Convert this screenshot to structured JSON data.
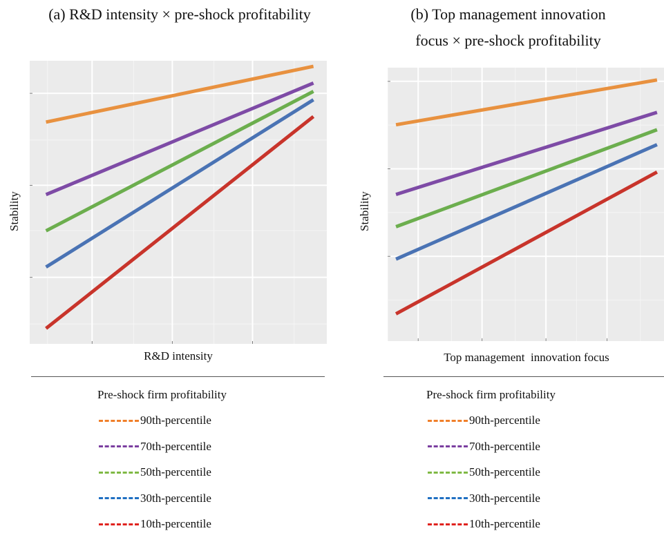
{
  "chart_data": [
    {
      "type": "line",
      "title": "(a) R&D intensity × pre-shock profitability",
      "xlabel": "R&D intensity",
      "ylabel": "Stability",
      "xlim": [
        0,
        1
      ],
      "ylim": [
        0,
        1
      ],
      "grid": true,
      "legend_title": "Pre-shock firm profitability",
      "legend_position": "bottom",
      "series": [
        {
          "name": "90th-percentile",
          "color": "#E8913F",
          "x": [
            0,
            1
          ],
          "y": [
            0.78,
            0.98
          ]
        },
        {
          "name": "70th-percentile",
          "color": "#7E4BA6",
          "x": [
            0,
            1
          ],
          "y": [
            0.52,
            0.92
          ]
        },
        {
          "name": "50th-percentile",
          "color": "#6CAE4E",
          "x": [
            0,
            1
          ],
          "y": [
            0.39,
            0.89
          ]
        },
        {
          "name": "30th-percentile",
          "color": "#4A73B4",
          "x": [
            0,
            1
          ],
          "y": [
            0.26,
            0.86
          ]
        },
        {
          "name": "10th-percentile",
          "color": "#C8342B",
          "x": [
            0,
            1
          ],
          "y": [
            0.04,
            0.8
          ]
        }
      ]
    },
    {
      "type": "line",
      "title_line1": "(b) Top management innovation",
      "title_line2": "focus × pre-shock profitability",
      "xlabel": "Top management  innovation focus",
      "ylabel": "Stability",
      "xlim": [
        0,
        1
      ],
      "ylim": [
        0,
        1
      ],
      "grid": true,
      "legend_title": "Pre-shock firm profitability",
      "legend_position": "bottom",
      "series": [
        {
          "name": "90th-percentile",
          "color": "#E8913F",
          "x": [
            0,
            1
          ],
          "y": [
            0.82,
            1.0
          ]
        },
        {
          "name": "70th-percentile",
          "color": "#7E4BA6",
          "x": [
            0,
            1
          ],
          "y": [
            0.54,
            0.87
          ]
        },
        {
          "name": "50th-percentile",
          "color": "#6CAE4E",
          "x": [
            0,
            1
          ],
          "y": [
            0.41,
            0.8
          ]
        },
        {
          "name": "30th-percentile",
          "color": "#4A73B4",
          "x": [
            0,
            1
          ],
          "y": [
            0.28,
            0.74
          ]
        },
        {
          "name": "10th-percentile",
          "color": "#C8342B",
          "x": [
            0,
            1
          ],
          "y": [
            0.06,
            0.63
          ]
        }
      ]
    }
  ],
  "legend": {
    "title": "Pre-shock  firm  profitability",
    "items": [
      {
        "label": "90th-percentile",
        "color": "#F07F2A"
      },
      {
        "label": "70th-percentile",
        "color": "#7B3FA0"
      },
      {
        "label": "50th-percentile",
        "color": "#7FB944"
      },
      {
        "label": "30th-percentile",
        "color": "#1F6FC2"
      },
      {
        "label": "10th-percentile",
        "color": "#E0231F"
      }
    ]
  }
}
